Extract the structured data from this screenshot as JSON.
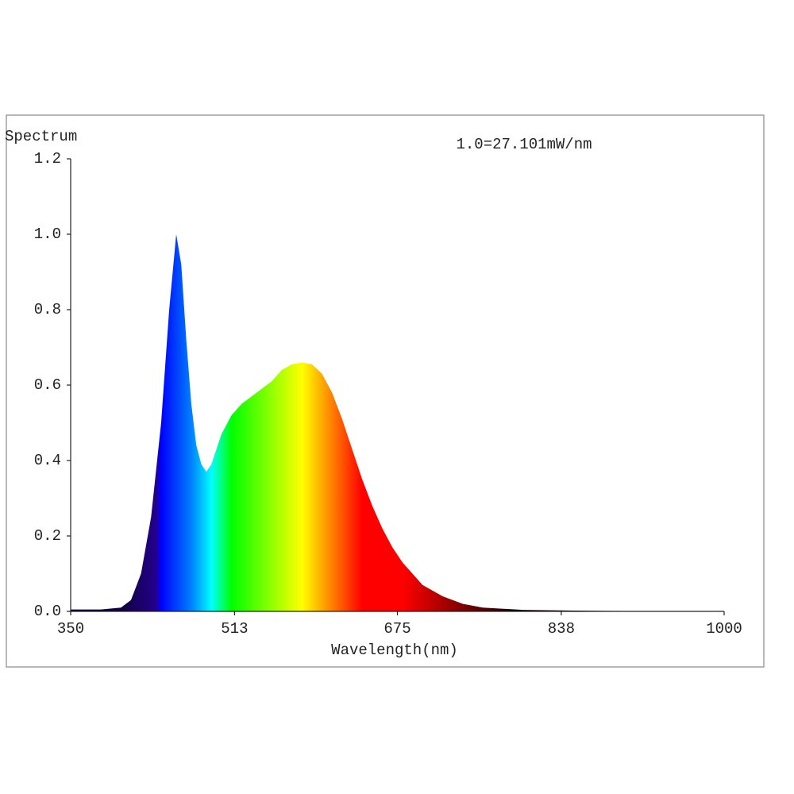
{
  "chart_data": {
    "type": "area",
    "title": "Spectrum",
    "annotation": "1.0=27.101mW/nm",
    "x_label": "Wavelength(nm)",
    "x": [
      350,
      380,
      400,
      410,
      420,
      430,
      440,
      448,
      455,
      460,
      465,
      470,
      475,
      480,
      485,
      490,
      495,
      500,
      510,
      520,
      530,
      540,
      550,
      560,
      570,
      580,
      590,
      600,
      610,
      620,
      630,
      640,
      650,
      660,
      670,
      680,
      690,
      700,
      720,
      740,
      760,
      800,
      850,
      900,
      1000
    ],
    "values": [
      0.005,
      0.005,
      0.01,
      0.03,
      0.1,
      0.25,
      0.5,
      0.8,
      1.0,
      0.92,
      0.72,
      0.55,
      0.44,
      0.39,
      0.37,
      0.39,
      0.43,
      0.47,
      0.52,
      0.55,
      0.57,
      0.59,
      0.61,
      0.64,
      0.655,
      0.66,
      0.655,
      0.63,
      0.58,
      0.51,
      0.43,
      0.35,
      0.28,
      0.22,
      0.17,
      0.13,
      0.1,
      0.07,
      0.04,
      0.02,
      0.01,
      0.004,
      0.002,
      0.001,
      0.001
    ],
    "xlim": [
      350,
      1000
    ],
    "xticks": [
      350,
      513,
      675,
      838,
      1000
    ],
    "ylim": [
      0,
      1.2
    ],
    "yticks": [
      {
        "value": 0,
        "label": "0.0"
      },
      0.2,
      0.4,
      0.6,
      0.8,
      {
        "value": 1,
        "label": "1.0"
      },
      1.2
    ]
  }
}
